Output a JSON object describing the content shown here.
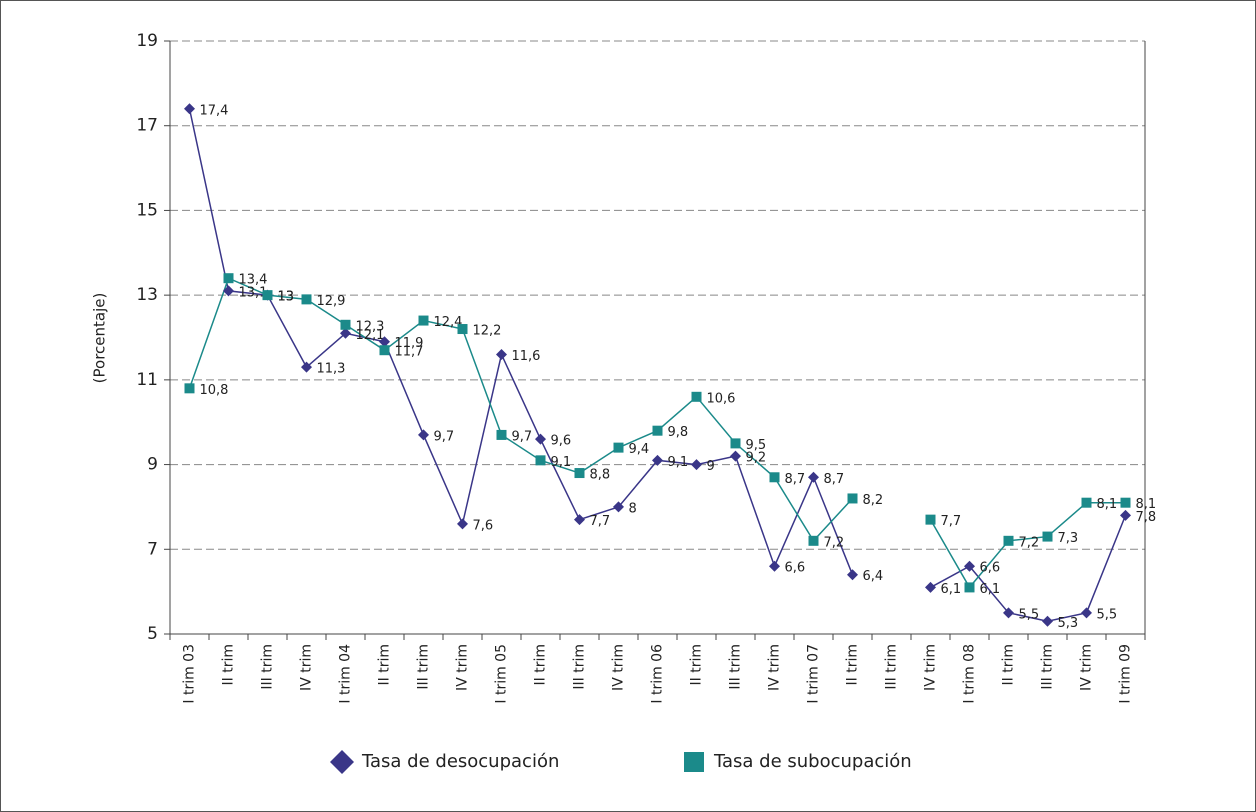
{
  "chart_data": {
    "type": "line",
    "y_label": "(Porcentaje)",
    "categories": [
      "I trim 03",
      "II trim",
      "III trim",
      "IV trim",
      "I trim 04",
      "II trim",
      "III trim",
      "IV trim",
      "I trim 05",
      "II trim",
      "III trim",
      "IV trim",
      "I trim 06",
      "II trim",
      "III trim",
      "IV trim",
      "I trim 07",
      "II trim",
      "III trim",
      "IV trim",
      "I trim 08",
      "II trim",
      "III trim",
      "IV trim",
      "I trim 09"
    ],
    "series": [
      {
        "name": "Tasa de desocupación",
        "color": "#3a3688",
        "marker": "diamond",
        "values": [
          17.4,
          13.1,
          13,
          11.3,
          12.1,
          11.9,
          9.7,
          7.6,
          11.6,
          9.6,
          7.7,
          8,
          9.1,
          9,
          9.2,
          6.6,
          8.7,
          6.4,
          null,
          6.1,
          6.6,
          5.5,
          5.3,
          5.5,
          7.8
        ],
        "value_labels": [
          "17,4",
          "13,1",
          "13",
          "11,3",
          "12,1",
          "11,9",
          "9,7",
          "7,6",
          "11,6",
          "9,6",
          "7,7",
          "8",
          "9,1",
          "9",
          "9,2",
          "6,6",
          "8,7",
          "6,4",
          null,
          "6,1",
          "6,6",
          "5,5",
          "5,3",
          "5,5",
          "7,8"
        ]
      },
      {
        "name": "Tasa de subocupación",
        "color": "#1b8a8a",
        "marker": "square",
        "values": [
          10.8,
          13.4,
          13,
          12.9,
          12.3,
          11.7,
          12.4,
          12.2,
          9.7,
          9.1,
          8.8,
          9.4,
          9.8,
          10.6,
          9.5,
          8.7,
          7.2,
          8.2,
          null,
          7.7,
          6.1,
          7.2,
          7.3,
          8.1,
          8.1
        ],
        "value_labels": [
          "10,8",
          "13,4",
          "13",
          "12,9",
          "12,3",
          "11,7",
          "12,4",
          "12,2",
          "9,7",
          "9,1",
          "8,8",
          "9,4",
          "9,8",
          "10,6",
          "9,5",
          "8,7",
          "7,2",
          "8,2",
          null,
          "7,7",
          "6,1",
          "7,2",
          "7,3",
          "8,1",
          "8,1"
        ]
      }
    ],
    "ylim": [
      5,
      19
    ],
    "yticks": [
      5,
      7,
      9,
      11,
      13,
      15,
      17,
      19
    ],
    "grid": true,
    "legend": "bottom"
  }
}
